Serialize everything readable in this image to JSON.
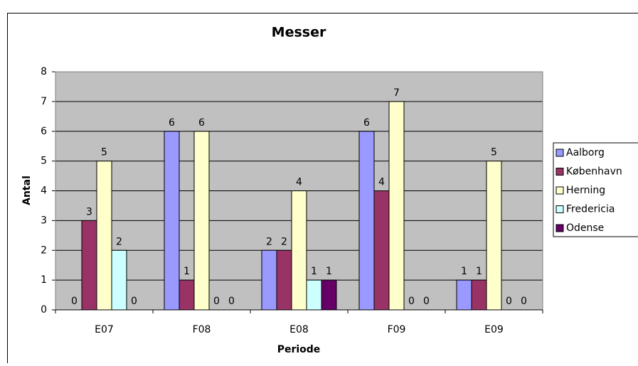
{
  "chart_data": {
    "type": "bar",
    "title": "Messer",
    "xlabel": "Periode",
    "ylabel": "Antal",
    "categories": [
      "E07",
      "F08",
      "E08",
      "F09",
      "E09"
    ],
    "series": [
      {
        "name": "Aalborg",
        "color": "#9999ff",
        "values": [
          0,
          6,
          2,
          6,
          1
        ]
      },
      {
        "name": "København",
        "color": "#993366",
        "values": [
          3,
          1,
          2,
          4,
          1
        ]
      },
      {
        "name": "Herning",
        "color": "#ffffcc",
        "values": [
          5,
          6,
          4,
          7,
          5
        ]
      },
      {
        "name": "Fredericia",
        "color": "#ccffff",
        "values": [
          2,
          0,
          1,
          0,
          0
        ]
      },
      {
        "name": "Odense",
        "color": "#660066",
        "values": [
          0,
          0,
          1,
          0,
          0
        ]
      }
    ],
    "ylim": [
      0,
      8
    ],
    "yticks": [
      0,
      1,
      2,
      3,
      4,
      5,
      6,
      7,
      8
    ],
    "grid": true,
    "legend": "right",
    "plot_background": "#c0c0c0"
  }
}
